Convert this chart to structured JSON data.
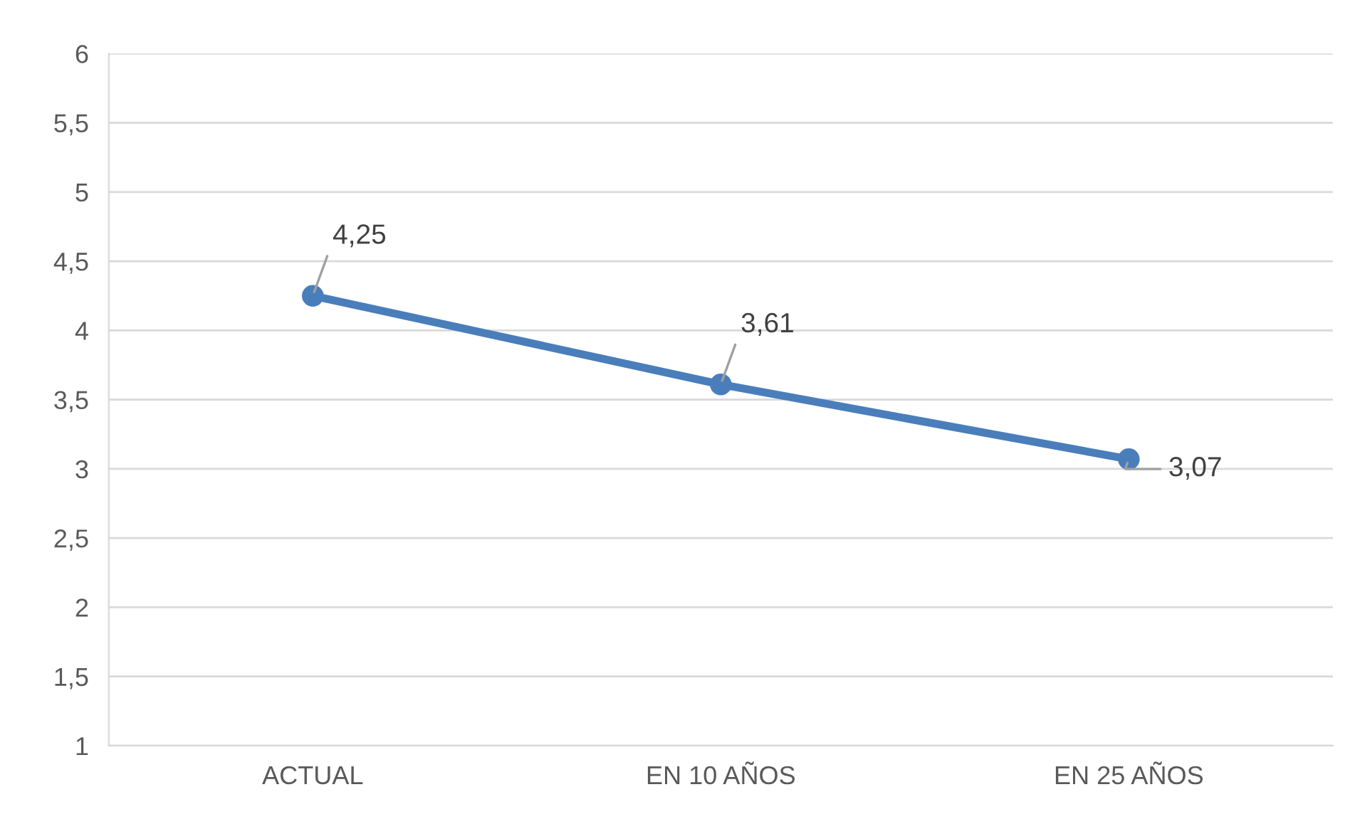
{
  "chart_data": {
    "type": "line",
    "categories": [
      "ACTUAL",
      "EN 10 AÑOS",
      "EN 25 AÑOS"
    ],
    "series": [
      {
        "color": "#4a7ebb",
        "values": [
          4.25,
          3.61,
          3.07
        ],
        "value_labels": [
          "4,25",
          "3,61",
          "3,07"
        ]
      }
    ],
    "ylim": [
      1,
      6
    ],
    "yticks": [
      1,
      {
        "value": 1.5,
        "label": "1,5"
      },
      2,
      {
        "value": 2.5,
        "label": "2,5"
      },
      3,
      {
        "value": 3.5,
        "label": "3,5"
      },
      4,
      {
        "value": 4.5,
        "label": "4,5"
      },
      5,
      {
        "value": 5.5,
        "label": "5,5"
      },
      6
    ],
    "grid": "y",
    "marker": "circle",
    "line_style": "solid",
    "legend": false
  }
}
